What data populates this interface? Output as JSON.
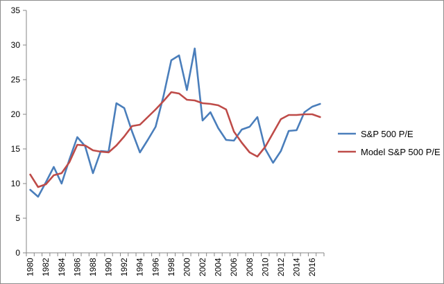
{
  "chart_data": {
    "type": "line",
    "title": "",
    "xlabel": "",
    "ylabel": "",
    "ylim": [
      0,
      35
    ],
    "yticks": [
      0,
      5,
      10,
      15,
      20,
      25,
      30,
      35
    ],
    "xlim": [
      1980,
      2017
    ],
    "xticks": [
      1980,
      1982,
      1984,
      1986,
      1988,
      1990,
      1992,
      1994,
      1996,
      1998,
      2000,
      2002,
      2004,
      2006,
      2008,
      2010,
      2012,
      2014,
      2016
    ],
    "legend_position": "right",
    "grid": false,
    "x": [
      1980,
      1981,
      1982,
      1983,
      1984,
      1985,
      1986,
      1987,
      1988,
      1989,
      1990,
      1991,
      1992,
      1993,
      1994,
      1995,
      1996,
      1997,
      1998,
      1999,
      2000,
      2001,
      2002,
      2003,
      2004,
      2005,
      2006,
      2007,
      2008,
      2009,
      2010,
      2011,
      2012,
      2013,
      2014,
      2015,
      2016,
      2017
    ],
    "series": [
      {
        "name": "S&P 500 P/E",
        "color": "#4a7ebb",
        "values": [
          9.1,
          8.1,
          10.2,
          12.4,
          10.0,
          13.5,
          16.7,
          15.4,
          11.5,
          14.7,
          14.6,
          21.6,
          20.9,
          17.5,
          14.5,
          16.3,
          18.2,
          22.6,
          27.8,
          28.5,
          23.5,
          29.5,
          19.1,
          20.3,
          18.0,
          16.3,
          16.2,
          17.8,
          18.2,
          19.6,
          15.0,
          13.0,
          14.7,
          17.6,
          17.7,
          20.3,
          21.1,
          21.5
        ]
      },
      {
        "name": "Model S&P 500 P/E",
        "color": "#be4b48",
        "values": [
          11.3,
          9.5,
          9.9,
          11.2,
          11.5,
          13.1,
          15.6,
          15.5,
          14.8,
          14.6,
          14.5,
          15.5,
          16.8,
          18.3,
          18.5,
          19.6,
          20.7,
          21.9,
          23.2,
          23.0,
          22.1,
          22.0,
          21.6,
          21.5,
          21.3,
          20.7,
          17.5,
          15.9,
          14.5,
          13.9,
          15.3,
          17.3,
          19.3,
          19.9,
          19.9,
          20.0,
          20.0,
          19.6
        ]
      }
    ]
  }
}
